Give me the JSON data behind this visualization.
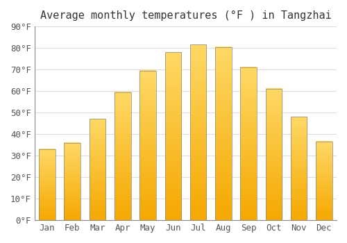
{
  "title": "Average monthly temperatures (°F ) in Tangzhai",
  "months": [
    "Jan",
    "Feb",
    "Mar",
    "Apr",
    "May",
    "Jun",
    "Jul",
    "Aug",
    "Sep",
    "Oct",
    "Nov",
    "Dec"
  ],
  "temperatures": [
    33,
    36,
    47,
    59.5,
    69.5,
    78,
    81.5,
    80.5,
    71,
    61,
    48,
    36.5
  ],
  "bar_color_bottom": "#F5A800",
  "bar_color_top": "#FFD966",
  "ylim": [
    0,
    90
  ],
  "yticks": [
    0,
    10,
    20,
    30,
    40,
    50,
    60,
    70,
    80,
    90
  ],
  "background_color": "#FFFFFF",
  "grid_color": "#DDDDDD",
  "title_fontsize": 11,
  "tick_fontsize": 9,
  "font_family": "monospace",
  "bar_width": 0.65,
  "bar_edge_color": "#888888",
  "bar_edge_width": 0.5
}
